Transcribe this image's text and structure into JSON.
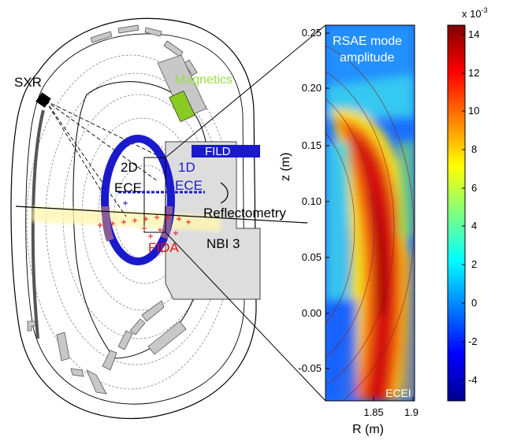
{
  "labels": {
    "sxr": "SXR",
    "magnetics": "Magnetics",
    "fild": "FILD",
    "ece2d_a": "2D",
    "ece2d_b": "ECE",
    "ece1d_a": "1D",
    "ece1d_b": "ECE",
    "reflectometry": "Reflectometry",
    "fida": "FIDA",
    "nbi": "NBI 3"
  },
  "heatmap": {
    "title_line1": "RSAE mode",
    "title_line2": "amplitude",
    "corner_label": "ECEI",
    "xlabel": "R (m)",
    "ylabel": "z (m)",
    "x_ticks": [
      "1.85",
      "1.9"
    ],
    "y_ticks": [
      "0.25",
      "0.20",
      "0.15",
      "0.10",
      "0.05",
      "0.00",
      "-0.05"
    ]
  },
  "colorbar": {
    "multiplier_base": "x 10",
    "multiplier_exp": "-3",
    "ticks": [
      "14",
      "12",
      "10",
      "8",
      "6",
      "4",
      "2",
      "0",
      "-2",
      "-4"
    ]
  },
  "colors": {
    "magnetics_text": "#99dd44",
    "magnetics_box": "#88cc22",
    "ece_ring": "#1a1acc",
    "fild_bar": "#1a1acc",
    "fida_text": "#ee1111",
    "ece1d_text": "#1a1acc"
  }
}
